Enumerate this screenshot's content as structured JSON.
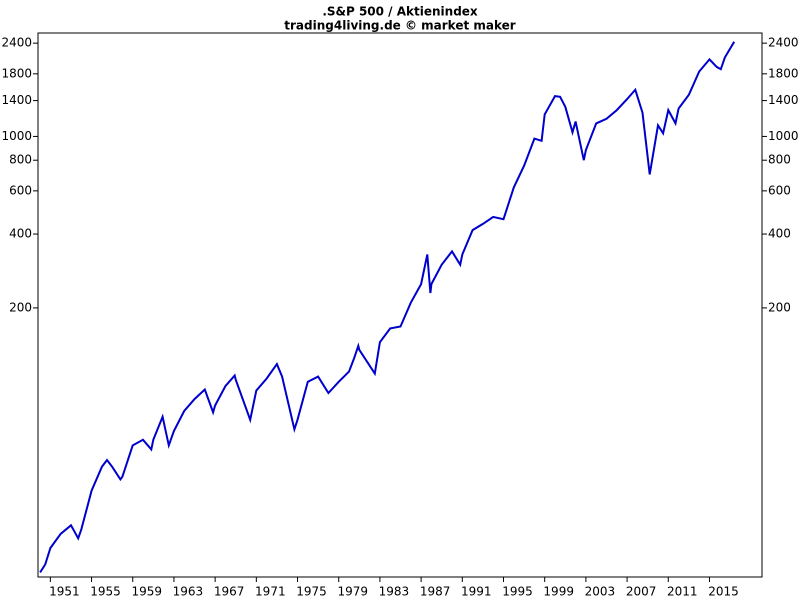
{
  "chart_data": {
    "type": "line",
    "title": ".S&P 500 / Aktienindex",
    "subtitle": "trading4living.de © market maker",
    "log_scale": true,
    "color": "#0000cc",
    "x": [
      1950.0,
      1950.5,
      1951,
      1952,
      1953,
      1953.7,
      1954,
      1955,
      1956,
      1956.5,
      1957,
      1957.8,
      1958,
      1959,
      1960,
      1960.8,
      1961,
      1961.9,
      1962.5,
      1963,
      1964,
      1965,
      1966,
      1966.8,
      1967,
      1968,
      1968.9,
      1969,
      1970.4,
      1971,
      1972,
      1973,
      1973.5,
      1974.7,
      1975,
      1976,
      1977,
      1978,
      1979,
      1980,
      1980.5,
      1980.9,
      1981,
      1982.5,
      1983,
      1984,
      1985,
      1986,
      1987,
      1987.6,
      1987.9,
      1988,
      1989,
      1990,
      1990.8,
      1991,
      1992,
      1993,
      1994,
      1995,
      1996,
      1997,
      1998,
      1998.7,
      1999,
      2000,
      2000.5,
      2001,
      2001.7,
      2002,
      2002.8,
      2003,
      2004,
      2005,
      2006,
      2007,
      2007.8,
      2008.5,
      2009.2,
      2010,
      2010.5,
      2011,
      2011.7,
      2012,
      2013,
      2014,
      2015,
      2015.7,
      2016.1,
      2016.5,
      2017,
      2017.4
    ],
    "values": [
      16.7,
      18,
      21,
      24,
      26,
      23,
      25,
      36,
      45,
      48,
      45,
      40,
      41,
      55,
      58,
      53,
      58,
      72,
      55,
      63,
      76,
      85,
      93,
      75,
      80,
      96,
      106,
      102,
      70,
      92,
      103,
      118,
      105,
      64,
      70,
      100,
      105,
      90,
      100,
      110,
      125,
      140,
      135,
      108,
      145,
      165,
      168,
      210,
      250,
      330,
      230,
      250,
      300,
      340,
      300,
      330,
      415,
      440,
      470,
      460,
      620,
      760,
      980,
      960,
      1230,
      1460,
      1450,
      1320,
      1040,
      1150,
      800,
      880,
      1130,
      1180,
      1280,
      1420,
      1550,
      1250,
      700,
      1110,
      1030,
      1280,
      1130,
      1300,
      1480,
      1840,
      2060,
      1920,
      1880,
      2100,
      2280,
      2430
    ],
    "xlim": [
      1949.8,
      2020.1
    ],
    "ylim": [
      16,
      2640
    ],
    "xticks": [
      1951,
      1955,
      1959,
      1963,
      1967,
      1971,
      1975,
      1979,
      1983,
      1987,
      1991,
      1995,
      1999,
      2003,
      2007,
      2011,
      2015
    ],
    "yticks": [
      200,
      400,
      600,
      800,
      1000,
      1400,
      1800,
      2400
    ]
  }
}
